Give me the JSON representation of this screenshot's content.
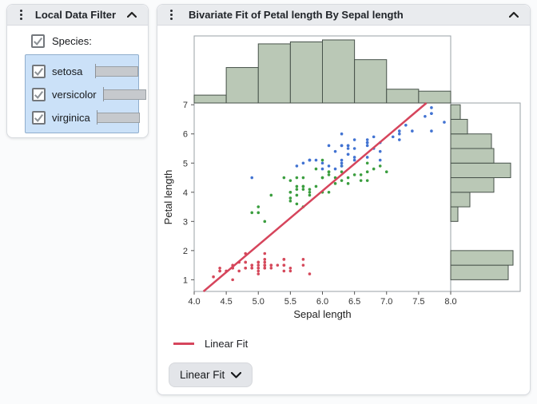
{
  "left_panel": {
    "title": "Local Data Filter",
    "species_label": "Species:",
    "species_checked": true,
    "filters": [
      {
        "label": "setosa",
        "checked": true,
        "count": 50
      },
      {
        "label": "versicolor",
        "checked": true,
        "count": 50
      },
      {
        "label": "virginica",
        "checked": true,
        "count": 50
      }
    ]
  },
  "main_panel": {
    "title": "Bivariate Fit of Petal length By Sepal length",
    "legend_label": "Linear Fit",
    "fit_button_label": "Linear Fit"
  },
  "chart_data": {
    "type": "scatter",
    "title": "Bivariate Fit of Petal length By Sepal length",
    "xlabel": "Sepal length",
    "ylabel": "Petal length",
    "xlim": [
      4.0,
      8.0
    ],
    "ylim": [
      0.6,
      7.06
    ],
    "x_ticks": [
      4.0,
      4.5,
      5.0,
      5.5,
      6.0,
      6.5,
      7.0,
      7.5,
      8.0
    ],
    "y_ticks": [
      1,
      2,
      3,
      4,
      5,
      6,
      7
    ],
    "box_stroke": "#9aa0a6",
    "tick_label_color": "#333333",
    "series": [
      {
        "name": "setosa",
        "color": "#d5495b",
        "points": [
          [
            5.1,
            1.4
          ],
          [
            4.9,
            1.4
          ],
          [
            4.7,
            1.3
          ],
          [
            4.6,
            1.5
          ],
          [
            5.0,
            1.4
          ],
          [
            5.4,
            1.7
          ],
          [
            4.6,
            1.4
          ],
          [
            5.0,
            1.5
          ],
          [
            4.4,
            1.4
          ],
          [
            4.9,
            1.5
          ],
          [
            5.4,
            1.5
          ],
          [
            4.8,
            1.6
          ],
          [
            4.8,
            1.4
          ],
          [
            4.3,
            1.1
          ],
          [
            5.8,
            1.2
          ],
          [
            5.7,
            1.5
          ],
          [
            5.4,
            1.3
          ],
          [
            5.1,
            1.4
          ],
          [
            5.7,
            1.7
          ],
          [
            5.1,
            1.5
          ],
          [
            5.4,
            1.7
          ],
          [
            5.1,
            1.5
          ],
          [
            4.6,
            1.0
          ],
          [
            5.1,
            1.7
          ],
          [
            4.8,
            1.9
          ],
          [
            5.0,
            1.6
          ],
          [
            5.0,
            1.6
          ],
          [
            5.2,
            1.5
          ],
          [
            5.2,
            1.4
          ],
          [
            4.7,
            1.6
          ],
          [
            4.8,
            1.6
          ],
          [
            5.4,
            1.5
          ],
          [
            5.2,
            1.5
          ],
          [
            5.5,
            1.4
          ],
          [
            4.9,
            1.5
          ],
          [
            5.0,
            1.2
          ],
          [
            5.5,
            1.3
          ],
          [
            4.9,
            1.4
          ],
          [
            4.4,
            1.3
          ],
          [
            5.1,
            1.5
          ],
          [
            5.0,
            1.3
          ],
          [
            4.5,
            1.3
          ],
          [
            4.4,
            1.3
          ],
          [
            5.0,
            1.6
          ],
          [
            5.1,
            1.9
          ],
          [
            4.8,
            1.4
          ],
          [
            5.1,
            1.6
          ],
          [
            4.6,
            1.4
          ],
          [
            5.3,
            1.5
          ],
          [
            5.0,
            1.4
          ]
        ]
      },
      {
        "name": "versicolor",
        "color": "#3b9e3f",
        "points": [
          [
            7.0,
            4.7
          ],
          [
            6.4,
            4.5
          ],
          [
            6.9,
            4.9
          ],
          [
            5.5,
            4.0
          ],
          [
            6.5,
            4.6
          ],
          [
            5.7,
            4.5
          ],
          [
            6.3,
            4.7
          ],
          [
            4.9,
            3.3
          ],
          [
            6.6,
            4.6
          ],
          [
            5.2,
            3.9
          ],
          [
            5.0,
            3.5
          ],
          [
            5.9,
            4.2
          ],
          [
            6.0,
            4.0
          ],
          [
            6.1,
            4.7
          ],
          [
            5.6,
            3.6
          ],
          [
            6.7,
            4.4
          ],
          [
            5.6,
            4.5
          ],
          [
            5.8,
            4.1
          ],
          [
            6.2,
            4.5
          ],
          [
            5.6,
            3.9
          ],
          [
            5.9,
            4.8
          ],
          [
            6.1,
            4.0
          ],
          [
            6.3,
            4.9
          ],
          [
            6.1,
            4.7
          ],
          [
            6.4,
            4.3
          ],
          [
            6.6,
            4.4
          ],
          [
            6.8,
            4.8
          ],
          [
            6.7,
            5.0
          ],
          [
            6.0,
            4.5
          ],
          [
            5.7,
            3.5
          ],
          [
            5.5,
            3.8
          ],
          [
            5.5,
            3.7
          ],
          [
            5.8,
            3.9
          ],
          [
            6.0,
            5.1
          ],
          [
            5.4,
            4.5
          ],
          [
            6.0,
            4.5
          ],
          [
            6.7,
            4.7
          ],
          [
            6.3,
            4.4
          ],
          [
            5.6,
            4.1
          ],
          [
            5.5,
            4.0
          ],
          [
            5.5,
            4.4
          ],
          [
            6.1,
            4.6
          ],
          [
            5.8,
            4.0
          ],
          [
            5.0,
            3.3
          ],
          [
            5.6,
            4.2
          ],
          [
            5.7,
            4.2
          ],
          [
            5.7,
            4.2
          ],
          [
            6.2,
            4.3
          ],
          [
            5.1,
            3.0
          ],
          [
            5.7,
            4.1
          ]
        ]
      },
      {
        "name": "virginica",
        "color": "#4273d2",
        "points": [
          [
            6.3,
            6.0
          ],
          [
            5.8,
            5.1
          ],
          [
            7.1,
            5.9
          ],
          [
            6.3,
            5.6
          ],
          [
            6.5,
            5.8
          ],
          [
            7.6,
            6.6
          ],
          [
            4.9,
            4.5
          ],
          [
            7.3,
            6.3
          ],
          [
            6.7,
            5.8
          ],
          [
            7.2,
            6.1
          ],
          [
            6.5,
            5.1
          ],
          [
            6.4,
            5.3
          ],
          [
            6.8,
            5.5
          ],
          [
            5.7,
            5.0
          ],
          [
            5.8,
            5.1
          ],
          [
            6.4,
            5.3
          ],
          [
            6.5,
            5.5
          ],
          [
            7.7,
            6.7
          ],
          [
            7.7,
            6.9
          ],
          [
            6.0,
            5.0
          ],
          [
            6.9,
            5.7
          ],
          [
            5.6,
            4.9
          ],
          [
            7.7,
            6.7
          ],
          [
            6.3,
            4.9
          ],
          [
            6.7,
            5.7
          ],
          [
            7.2,
            6.0
          ],
          [
            6.2,
            4.8
          ],
          [
            6.1,
            4.9
          ],
          [
            6.4,
            5.6
          ],
          [
            7.2,
            5.8
          ],
          [
            7.4,
            6.1
          ],
          [
            7.9,
            6.4
          ],
          [
            6.4,
            5.6
          ],
          [
            6.3,
            5.1
          ],
          [
            6.1,
            5.6
          ],
          [
            7.7,
            6.1
          ],
          [
            6.3,
            5.6
          ],
          [
            6.4,
            5.5
          ],
          [
            6.0,
            4.8
          ],
          [
            6.9,
            5.4
          ],
          [
            6.7,
            5.6
          ],
          [
            6.9,
            5.1
          ],
          [
            5.8,
            5.1
          ],
          [
            6.8,
            5.9
          ],
          [
            6.7,
            5.7
          ],
          [
            6.7,
            5.2
          ],
          [
            6.3,
            5.0
          ],
          [
            6.5,
            5.2
          ],
          [
            6.2,
            5.4
          ],
          [
            5.9,
            5.1
          ]
        ]
      }
    ],
    "fit": {
      "label": "Linear Fit",
      "slope": 1.858,
      "intercept": -7.101,
      "color": "#d6455c"
    },
    "top_histogram": {
      "axis": "x",
      "bin_start": 4.0,
      "bin_width": 0.5,
      "counts": [
        4,
        18,
        30,
        31,
        32,
        22,
        7,
        6
      ],
      "fill": "#bac8b6",
      "stroke": "#47524a"
    },
    "right_histogram": {
      "axis": "y",
      "bin_start": 1.0,
      "bin_width": 0.5,
      "counts": [
        24,
        26,
        0,
        0,
        3,
        8,
        18,
        25,
        18,
        17,
        7,
        4
      ],
      "fill": "#bac8b6",
      "stroke": "#47524a"
    },
    "legend_position": "bottom-left",
    "grid": false
  }
}
